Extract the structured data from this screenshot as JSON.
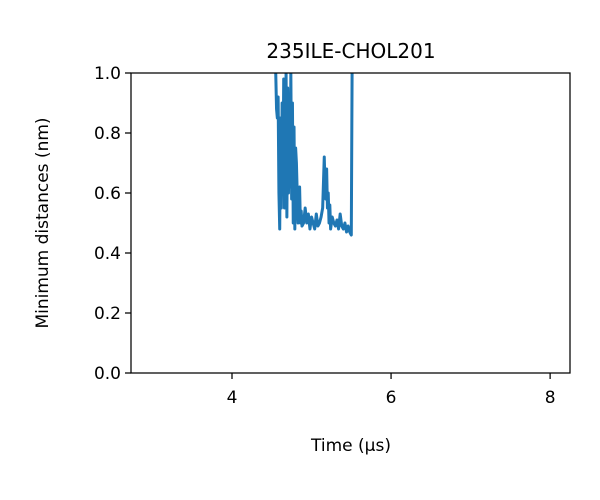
{
  "chart_data": {
    "type": "line",
    "title": "235ILE-CHOL201",
    "xlabel": "Time (μs)",
    "ylabel": "Minimum distances (nm)",
    "xlim": [
      2.73,
      8.25
    ],
    "ylim": [
      0.0,
      1.0
    ],
    "xticks": [
      4,
      6,
      8
    ],
    "yticks": [
      0.0,
      0.2,
      0.4,
      0.6,
      0.8,
      1.0
    ],
    "xtick_labels": [
      "4",
      "6",
      "8"
    ],
    "ytick_labels": [
      "0.0",
      "0.2",
      "0.4",
      "0.6",
      "0.8",
      "1.0"
    ],
    "grid": false,
    "series": [
      {
        "color": "#1f77b4",
        "x": [
          4.55,
          4.56,
          4.57,
          4.58,
          4.59,
          4.6,
          4.61,
          4.62,
          4.63,
          4.64,
          4.65,
          4.66,
          4.67,
          4.68,
          4.69,
          4.7,
          4.71,
          4.72,
          4.73,
          4.74,
          4.75,
          4.76,
          4.77,
          4.78,
          4.79,
          4.8,
          4.81,
          4.82,
          4.83,
          4.84,
          4.85,
          4.86,
          4.87,
          4.88,
          4.9,
          4.92,
          4.94,
          4.96,
          4.98,
          5.0,
          5.02,
          5.04,
          5.06,
          5.08,
          5.1,
          5.12,
          5.14,
          5.16,
          5.17,
          5.18,
          5.19,
          5.2,
          5.21,
          5.22,
          5.23,
          5.24,
          5.26,
          5.28,
          5.3,
          5.32,
          5.34,
          5.36,
          5.38,
          5.4,
          5.42,
          5.44,
          5.46,
          5.48,
          5.5,
          5.51
        ],
        "y": [
          1.0,
          0.88,
          0.85,
          0.92,
          0.6,
          0.48,
          0.85,
          0.55,
          0.9,
          0.6,
          0.98,
          0.55,
          0.75,
          1.0,
          0.52,
          0.95,
          0.6,
          0.88,
          0.62,
          1.0,
          0.58,
          0.9,
          0.5,
          0.82,
          0.48,
          0.75,
          0.7,
          0.6,
          0.5,
          0.52,
          0.62,
          0.5,
          0.54,
          0.49,
          0.5,
          0.55,
          0.5,
          0.53,
          0.48,
          0.52,
          0.5,
          0.48,
          0.53,
          0.49,
          0.5,
          0.52,
          0.55,
          0.72,
          0.62,
          0.58,
          0.68,
          0.55,
          0.6,
          0.5,
          0.56,
          0.48,
          0.52,
          0.5,
          0.49,
          0.51,
          0.48,
          0.53,
          0.49,
          0.48,
          0.5,
          0.47,
          0.49,
          0.47,
          0.46,
          1.0
        ]
      }
    ]
  }
}
